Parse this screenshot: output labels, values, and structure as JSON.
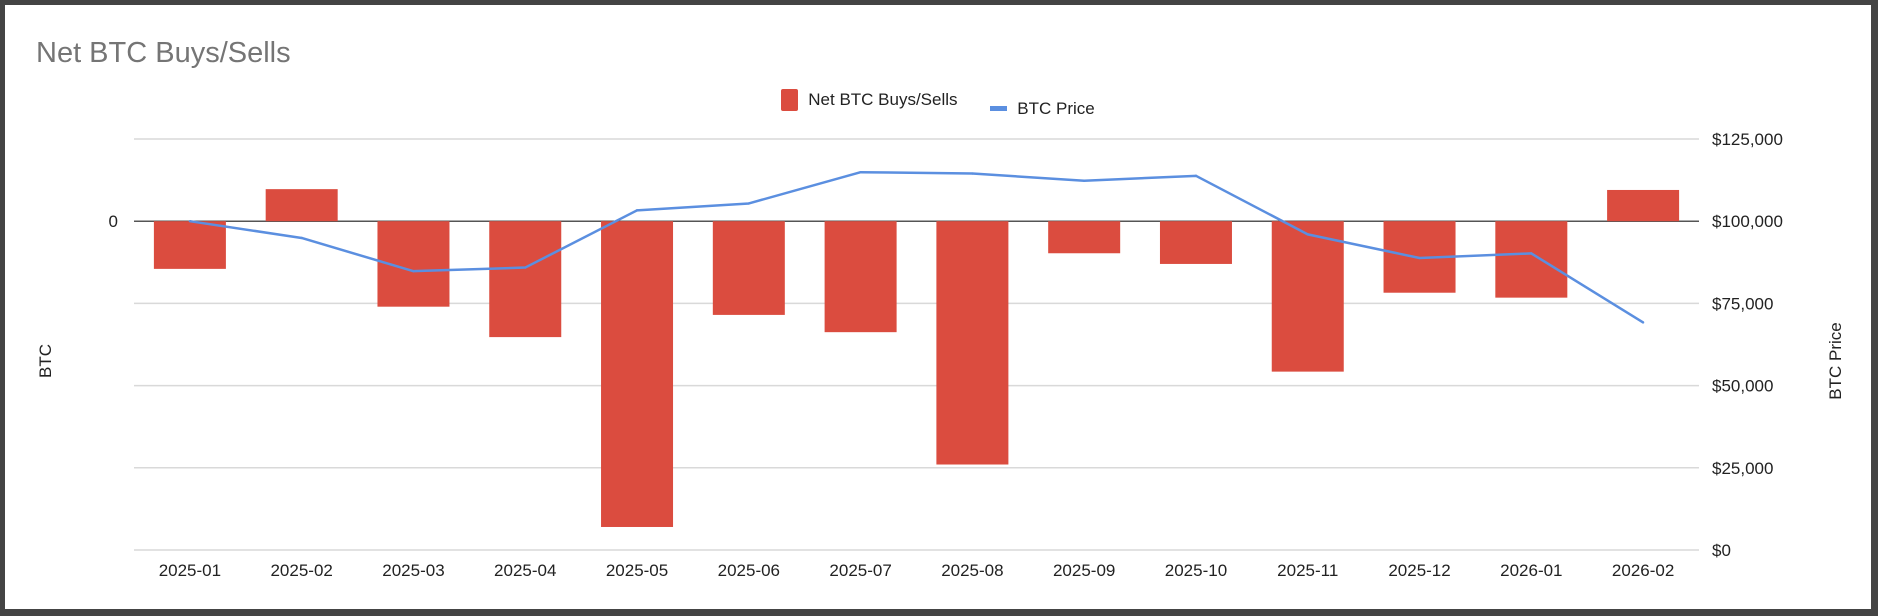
{
  "chart_data": {
    "type": "bar+line",
    "title": "Net BTC Buys/Sells",
    "categories": [
      "2025-01",
      "2025-02",
      "2025-03",
      "2025-04",
      "2025-05",
      "2025-06",
      "2025-07",
      "2025-08",
      "2025-09",
      "2025-10",
      "2025-11",
      "2025-12",
      "2026-01",
      "2026-02"
    ],
    "series": [
      {
        "name": "Net BTC Buys/Sells",
        "type": "bar",
        "axis": "left",
        "color": "#db4c3f",
        "values": [
          -0.58,
          0.39,
          -1.04,
          -1.41,
          -3.72,
          -1.14,
          -1.35,
          -2.96,
          -0.39,
          -0.52,
          -1.83,
          -0.87,
          -0.93,
          0.38
        ]
      },
      {
        "name": "BTC Price",
        "type": "line",
        "axis": "right",
        "color": "#5b8fe0",
        "values": [
          100000,
          94900,
          84800,
          85900,
          103300,
          105400,
          114900,
          114500,
          112300,
          113800,
          96000,
          88800,
          90200,
          69200
        ]
      }
    ],
    "left_axis": {
      "label": "BTC",
      "tick_labels": [
        "0"
      ],
      "ylim": [
        -4,
        1
      ]
    },
    "right_axis": {
      "label": "BTC Price",
      "tick_labels": [
        "$0",
        "$25,000",
        "$50,000",
        "$75,000",
        "$100,000",
        "$125,000"
      ],
      "ylim": [
        0,
        125000
      ]
    },
    "grid": true,
    "legend": "top"
  }
}
